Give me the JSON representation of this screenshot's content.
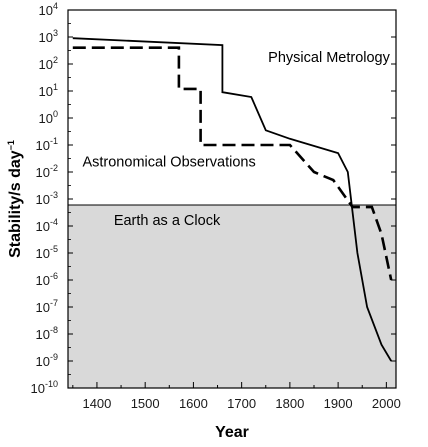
{
  "chart_data": {
    "type": "line",
    "title": "",
    "xlabel": "Year",
    "ylabel": "Stability/s day",
    "ylabel_exponent": "−1",
    "xlim": [
      1340,
      2020
    ],
    "ylim_log10": [
      -10,
      4
    ],
    "yscale": "log",
    "grid": false,
    "legend": "none",
    "x_ticks": [
      1400,
      1500,
      1600,
      1700,
      1800,
      1900,
      2000
    ],
    "y_ticks": [
      {
        "exp": 4,
        "label": "4"
      },
      {
        "exp": 3,
        "label": "3"
      },
      {
        "exp": 2,
        "label": "2"
      },
      {
        "exp": 1,
        "label": "1"
      },
      {
        "exp": 0,
        "label": "0"
      },
      {
        "exp": -1,
        "label": "-1"
      },
      {
        "exp": -2,
        "label": "-2"
      },
      {
        "exp": -3,
        "label": "-3"
      },
      {
        "exp": -4,
        "label": "-4"
      },
      {
        "exp": -5,
        "label": "-5"
      },
      {
        "exp": -6,
        "label": "-6"
      },
      {
        "exp": -7,
        "label": "-7"
      },
      {
        "exp": -8,
        "label": "-8"
      },
      {
        "exp": -9,
        "label": "-9"
      },
      {
        "exp": -10,
        "label": "-10"
      }
    ],
    "tick_base": "10",
    "shaded_region": {
      "label": "Earth as a Clock",
      "upper_value": 0.0006,
      "color": "#d9d9d9"
    },
    "series": [
      {
        "style": "solid",
        "points": [
          [
            1350,
            900
          ],
          [
            1660,
            500
          ],
          [
            1660,
            9
          ],
          [
            1720,
            6
          ],
          [
            1750,
            0.35
          ],
          [
            1800,
            0.17
          ],
          [
            1900,
            0.05
          ],
          [
            1920,
            0.01
          ],
          [
            1940,
            1e-05
          ],
          [
            1960,
            1e-07
          ],
          [
            1990,
            4e-09
          ],
          [
            2010,
            1e-09
          ]
        ]
      },
      {
        "style": "dashed",
        "points": [
          [
            1350,
            400
          ],
          [
            1570,
            400
          ],
          [
            1570,
            12
          ],
          [
            1615,
            12
          ],
          [
            1615,
            0.1
          ],
          [
            1740,
            0.1
          ],
          [
            1800,
            0.1
          ],
          [
            1850,
            0.01
          ],
          [
            1890,
            0.005
          ],
          [
            1930,
            0.0005
          ],
          [
            1970,
            0.0005
          ],
          [
            1990,
            5e-05
          ],
          [
            2010,
            1e-06
          ]
        ]
      }
    ],
    "annotations": [
      {
        "text": "Physical Metrology",
        "x": 1755,
        "y": 180
      },
      {
        "text": "Astronomical Observations",
        "x": 1370,
        "y": 0.025
      },
      {
        "text": "Earth as a Clock",
        "x": 1435,
        "y": 0.00017
      }
    ]
  }
}
